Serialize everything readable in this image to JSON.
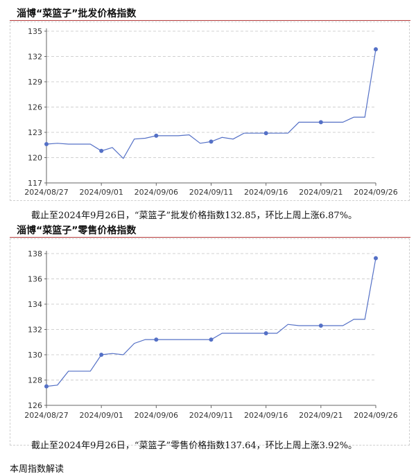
{
  "charts": [
    {
      "title": "淄博“菜篮子”批发价格指数",
      "caption": "截止至2024年9月26日，“菜篮子”批发价格指数132.85，环比上周上涨6.87%。"
    },
    {
      "title": "淄博“菜篮子”零售价格指数",
      "caption": "截止至2024年9月26日，“菜篮子”零售价格指数137.64，环比上周上涨3.92%。"
    }
  ],
  "footer": "本周指数解读",
  "chart_data": [
    {
      "type": "line",
      "title": "淄博“菜篮子”批发价格指数",
      "x_tick_labels": [
        "2024/08/27",
        "2024/09/01",
        "2024/09/06",
        "2024/09/11",
        "2024/09/16",
        "2024/09/21",
        "2024/09/26"
      ],
      "y_ticks": [
        117,
        120,
        123,
        126,
        129,
        132,
        135
      ],
      "ylim": [
        117,
        135
      ],
      "grid": "horizontal dashed",
      "color": "#5470c6",
      "x": [
        "2024/08/27",
        "2024/08/28",
        "2024/08/29",
        "2024/08/30",
        "2024/08/31",
        "2024/09/01",
        "2024/09/02",
        "2024/09/03",
        "2024/09/04",
        "2024/09/05",
        "2024/09/06",
        "2024/09/07",
        "2024/09/08",
        "2024/09/09",
        "2024/09/10",
        "2024/09/11",
        "2024/09/12",
        "2024/09/13",
        "2024/09/14",
        "2024/09/15",
        "2024/09/16",
        "2024/09/17",
        "2024/09/18",
        "2024/09/19",
        "2024/09/20",
        "2024/09/21",
        "2024/09/22",
        "2024/09/23",
        "2024/09/24",
        "2024/09/25",
        "2024/09/26"
      ],
      "values": [
        121.6,
        121.7,
        121.6,
        121.6,
        121.6,
        120.8,
        121.2,
        119.9,
        122.2,
        122.3,
        122.6,
        122.6,
        122.6,
        122.7,
        121.7,
        121.9,
        122.4,
        122.2,
        122.9,
        122.9,
        122.9,
        122.9,
        122.9,
        124.2,
        124.2,
        124.2,
        124.2,
        124.2,
        124.8,
        124.8,
        132.85
      ],
      "markers": [
        "2024/08/27",
        "2024/09/01",
        "2024/09/06",
        "2024/09/11",
        "2024/09/16",
        "2024/09/21",
        "2024/09/26"
      ]
    },
    {
      "type": "line",
      "title": "淄博“菜篮子”零售价格指数",
      "x_tick_labels": [
        "2024/08/27",
        "2024/09/01",
        "2024/09/06",
        "2024/09/11",
        "2024/09/16",
        "2024/09/21",
        "2024/09/26"
      ],
      "y_ticks": [
        126,
        128,
        130,
        132,
        134,
        136,
        138
      ],
      "ylim": [
        126,
        138
      ],
      "grid": "horizontal dashed",
      "color": "#5470c6",
      "x": [
        "2024/08/27",
        "2024/08/28",
        "2024/08/29",
        "2024/08/30",
        "2024/08/31",
        "2024/09/01",
        "2024/09/02",
        "2024/09/03",
        "2024/09/04",
        "2024/09/05",
        "2024/09/06",
        "2024/09/07",
        "2024/09/08",
        "2024/09/09",
        "2024/09/10",
        "2024/09/11",
        "2024/09/12",
        "2024/09/13",
        "2024/09/14",
        "2024/09/15",
        "2024/09/16",
        "2024/09/17",
        "2024/09/18",
        "2024/09/19",
        "2024/09/20",
        "2024/09/21",
        "2024/09/22",
        "2024/09/23",
        "2024/09/24",
        "2024/09/25",
        "2024/09/26"
      ],
      "values": [
        127.5,
        127.6,
        128.7,
        128.7,
        128.7,
        130.0,
        130.1,
        130.0,
        130.9,
        131.2,
        131.2,
        131.2,
        131.2,
        131.2,
        131.2,
        131.2,
        131.7,
        131.7,
        131.7,
        131.7,
        131.7,
        131.7,
        132.4,
        132.3,
        132.3,
        132.3,
        132.3,
        132.3,
        132.8,
        132.8,
        137.64
      ],
      "markers": [
        "2024/08/27",
        "2024/09/01",
        "2024/09/06",
        "2024/09/11",
        "2024/09/16",
        "2024/09/21",
        "2024/09/26"
      ]
    }
  ]
}
